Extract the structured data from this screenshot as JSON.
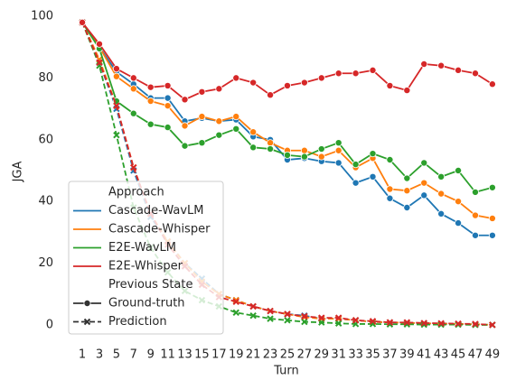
{
  "chart_data": {
    "type": "line",
    "x_label": "Turn",
    "y_label": "JGA",
    "x": [
      1,
      3,
      5,
      7,
      9,
      11,
      13,
      15,
      17,
      19,
      21,
      23,
      25,
      27,
      29,
      31,
      33,
      35,
      37,
      39,
      41,
      43,
      45,
      47,
      49
    ],
    "xlim": [
      -0.7,
      50.6
    ],
    "xticks": [
      1,
      3,
      5,
      7,
      9,
      11,
      13,
      15,
      17,
      19,
      21,
      23,
      25,
      27,
      29,
      31,
      33,
      35,
      37,
      39,
      41,
      43,
      45,
      47,
      49
    ],
    "ylim": [
      -4.4,
      103.8
    ],
    "yticks": [
      0,
      20,
      40,
      60,
      80,
      100
    ],
    "legend": {
      "approach_title": "Approach",
      "state_title": "Previous State",
      "states": [
        "Ground-truth",
        "Prediction"
      ],
      "position": "lower left"
    },
    "series": [
      {
        "name": "Cascade-WavLM",
        "color": "#1f77b4",
        "ground_truth": [
          98,
          90,
          82,
          78,
          73.5,
          73.5,
          66,
          67,
          66,
          66.5,
          61,
          60,
          53.5,
          54,
          53,
          52.5,
          46,
          48,
          41,
          38,
          42,
          36,
          33,
          29,
          29
        ],
        "prediction": [
          98,
          85,
          70,
          50,
          35,
          27,
          20,
          15,
          10,
          8,
          6,
          4.5,
          3.5,
          3,
          2,
          2,
          1.5,
          1,
          0.8,
          0.7,
          0.5,
          0.4,
          0.3,
          0.2,
          0
        ]
      },
      {
        "name": "Cascade-Whisper",
        "color": "#ff7f0e",
        "ground_truth": [
          98,
          90,
          80.5,
          76.5,
          72.5,
          71,
          64.5,
          67.5,
          66,
          67.5,
          62.5,
          59,
          56.5,
          56.5,
          54.5,
          56.5,
          51,
          54,
          44,
          43.5,
          46,
          42.5,
          40,
          35.5,
          34.5
        ],
        "prediction": [
          98,
          86,
          71,
          51,
          36,
          27,
          20,
          14,
          10,
          8,
          6,
          4.5,
          3.5,
          2.5,
          2,
          2,
          1.5,
          1,
          0.8,
          0.7,
          0.5,
          0.4,
          0.3,
          0.2,
          0
        ]
      },
      {
        "name": "E2E-WavLM",
        "color": "#2ca02c",
        "ground_truth": [
          98,
          89.5,
          72.5,
          68.5,
          65,
          64,
          58,
          59,
          61.5,
          63.5,
          57.5,
          57,
          55,
          54.5,
          57,
          59,
          52,
          55.5,
          53.5,
          47.5,
          52.5,
          48,
          50,
          43,
          44.5
        ],
        "prediction": [
          98,
          84,
          61.5,
          38,
          25,
          17,
          11,
          8,
          6,
          4,
          3,
          2,
          1.5,
          1,
          0.8,
          0.5,
          0.3,
          0.3,
          0.2,
          0.2,
          0.1,
          0.1,
          0.1,
          0,
          0
        ]
      },
      {
        "name": "E2E-Whisper",
        "color": "#d62728",
        "ground_truth": [
          98,
          91,
          83,
          80,
          77,
          77.5,
          73,
          75.5,
          76.5,
          80,
          78.5,
          74.5,
          77.5,
          78.5,
          80,
          81.5,
          81.5,
          82.5,
          77.5,
          76,
          84.5,
          84,
          82.5,
          81.5,
          78
        ],
        "prediction": [
          98,
          85,
          71,
          51,
          36,
          26,
          19,
          13,
          9,
          7.5,
          6,
          4.5,
          3.5,
          2.8,
          2.3,
          2.3,
          1.5,
          1.2,
          0.8,
          0.8,
          0.6,
          0.5,
          0.4,
          0.3,
          0
        ]
      }
    ]
  }
}
